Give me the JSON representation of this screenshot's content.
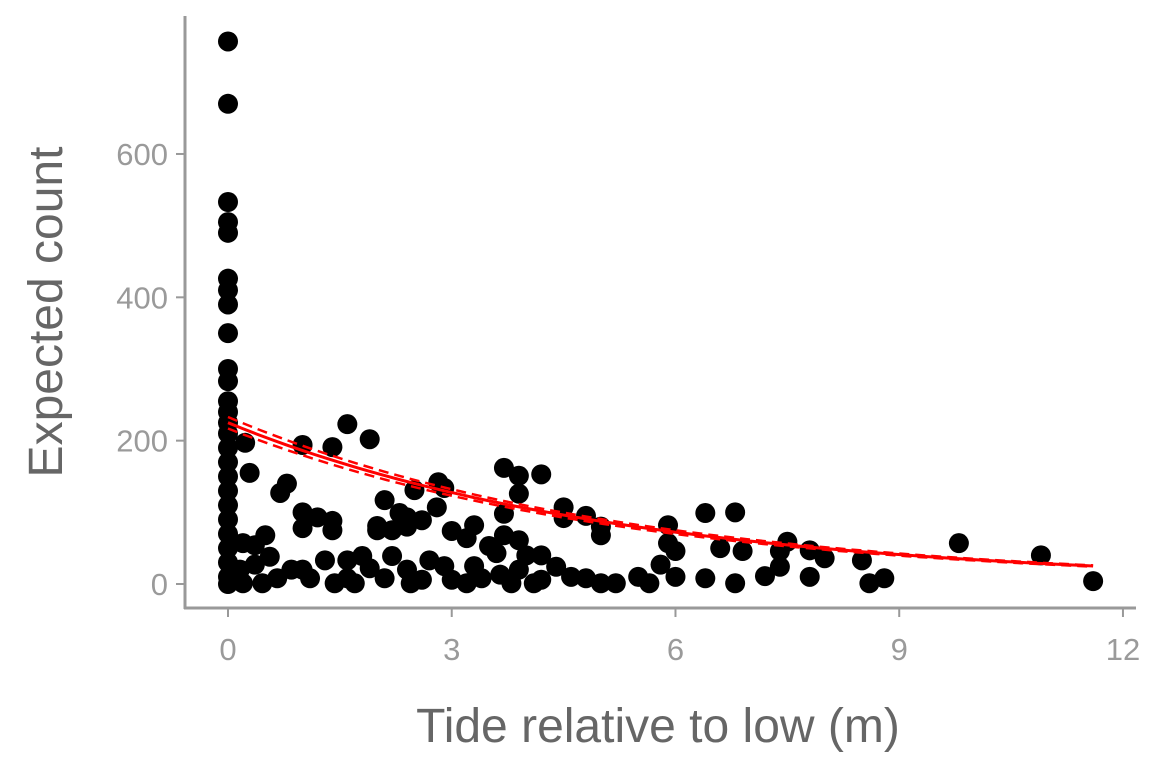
{
  "chart_data": {
    "type": "scatter",
    "title": "",
    "xlabel": "Tide relative to low (m)",
    "ylabel": "Expected count",
    "xlim": [
      -0.6,
      12.2
    ],
    "ylim": [
      -35,
      790
    ],
    "xticks": [
      0,
      3,
      6,
      9,
      12
    ],
    "yticks": [
      0,
      200,
      400,
      600
    ],
    "grid": false,
    "legend": "none",
    "colors": {
      "points": "#000000",
      "fit": "#ff0000",
      "axis": "#999999"
    },
    "points": [
      [
        0,
        757
      ],
      [
        0,
        670
      ],
      [
        0,
        533
      ],
      [
        0,
        505
      ],
      [
        0,
        490
      ],
      [
        0,
        426
      ],
      [
        0,
        410
      ],
      [
        0,
        390
      ],
      [
        0,
        350
      ],
      [
        0,
        300
      ],
      [
        0,
        283
      ],
      [
        0,
        255
      ],
      [
        0,
        240
      ],
      [
        0,
        225
      ],
      [
        0,
        210
      ],
      [
        0,
        190
      ],
      [
        0,
        170
      ],
      [
        0,
        150
      ],
      [
        0,
        130
      ],
      [
        0,
        110
      ],
      [
        0,
        90
      ],
      [
        0,
        70
      ],
      [
        0,
        50
      ],
      [
        0,
        30
      ],
      [
        0,
        10
      ],
      [
        0,
        0
      ],
      [
        0.23,
        197
      ],
      [
        0.29,
        155
      ],
      [
        1.0,
        194
      ],
      [
        0.79,
        140
      ],
      [
        0.7,
        127
      ],
      [
        1.6,
        223
      ],
      [
        1.4,
        191
      ],
      [
        1.9,
        202
      ],
      [
        1.0,
        100
      ],
      [
        1.0,
        78
      ],
      [
        1.2,
        93
      ],
      [
        1.4,
        88
      ],
      [
        1.4,
        75
      ],
      [
        0.5,
        68
      ],
      [
        0.36,
        54
      ],
      [
        0.2,
        57
      ],
      [
        2.1,
        117
      ],
      [
        2.0,
        81
      ],
      [
        2.0,
        75
      ],
      [
        2.3,
        99
      ],
      [
        2.4,
        93
      ],
      [
        2.4,
        80
      ],
      [
        2.2,
        75
      ],
      [
        2.6,
        89
      ],
      [
        2.5,
        131
      ],
      [
        2.8,
        107
      ],
      [
        2.82,
        142
      ],
      [
        2.9,
        134
      ],
      [
        3.0,
        74
      ],
      [
        3.2,
        64
      ],
      [
        3.3,
        82
      ],
      [
        3.7,
        162
      ],
      [
        3.9,
        151
      ],
      [
        4.2,
        153
      ],
      [
        3.9,
        126
      ],
      [
        3.7,
        98
      ],
      [
        3.5,
        53
      ],
      [
        3.6,
        43
      ],
      [
        3.7,
        68
      ],
      [
        3.9,
        61
      ],
      [
        4.0,
        40
      ],
      [
        4.2,
        40
      ],
      [
        4.5,
        107
      ],
      [
        4.8,
        95
      ],
      [
        5.0,
        68
      ],
      [
        5.0,
        80
      ],
      [
        4.5,
        92
      ],
      [
        5.9,
        82
      ],
      [
        5.9,
        57
      ],
      [
        6.0,
        46
      ],
      [
        6.4,
        99
      ],
      [
        6.6,
        50
      ],
      [
        6.8,
        100
      ],
      [
        6.9,
        46
      ],
      [
        7.2,
        11
      ],
      [
        7.4,
        24
      ],
      [
        7.4,
        46
      ],
      [
        7.5,
        59
      ],
      [
        7.8,
        47
      ],
      [
        8.0,
        36
      ],
      [
        7.8,
        10
      ],
      [
        8.5,
        33
      ],
      [
        8.6,
        1
      ],
      [
        8.8,
        8
      ],
      [
        9.8,
        57
      ],
      [
        10.9,
        40
      ],
      [
        11.6,
        4
      ],
      [
        0.56,
        38
      ],
      [
        5.8,
        27
      ],
      [
        5.5,
        10
      ],
      [
        6.0,
        10
      ],
      [
        5.0,
        1
      ],
      [
        4.8,
        8
      ],
      [
        4.6,
        10
      ],
      [
        4.4,
        24
      ],
      [
        4.1,
        1
      ],
      [
        3.9,
        20
      ],
      [
        3.8,
        1
      ],
      [
        3.3,
        25
      ],
      [
        3.4,
        8
      ],
      [
        3.2,
        1
      ],
      [
        2.9,
        25
      ],
      [
        2.7,
        33
      ],
      [
        2.6,
        6
      ],
      [
        2.4,
        20
      ],
      [
        2.2,
        39
      ],
      [
        2.1,
        8
      ],
      [
        1.9,
        22
      ],
      [
        1.8,
        39
      ],
      [
        1.6,
        33
      ],
      [
        1.6,
        8
      ],
      [
        1.3,
        33
      ],
      [
        1.1,
        8
      ],
      [
        1.0,
        20
      ],
      [
        0.85,
        20
      ],
      [
        0.66,
        8
      ],
      [
        0.46,
        1
      ],
      [
        0.2,
        1
      ],
      [
        0.16,
        20
      ],
      [
        0.36,
        27
      ],
      [
        1.43,
        1
      ],
      [
        1.7,
        1
      ],
      [
        2.45,
        1
      ],
      [
        3.0,
        6
      ],
      [
        3.65,
        13
      ],
      [
        4.2,
        6
      ],
      [
        5.65,
        1
      ],
      [
        5.2,
        1
      ],
      [
        6.4,
        8
      ],
      [
        6.8,
        1
      ]
    ],
    "fit": {
      "type": "exponential",
      "intercept": 225,
      "rate": 0.189,
      "x_range": [
        0,
        11.6
      ],
      "ci_halfwidth_at_0": 8
    }
  }
}
